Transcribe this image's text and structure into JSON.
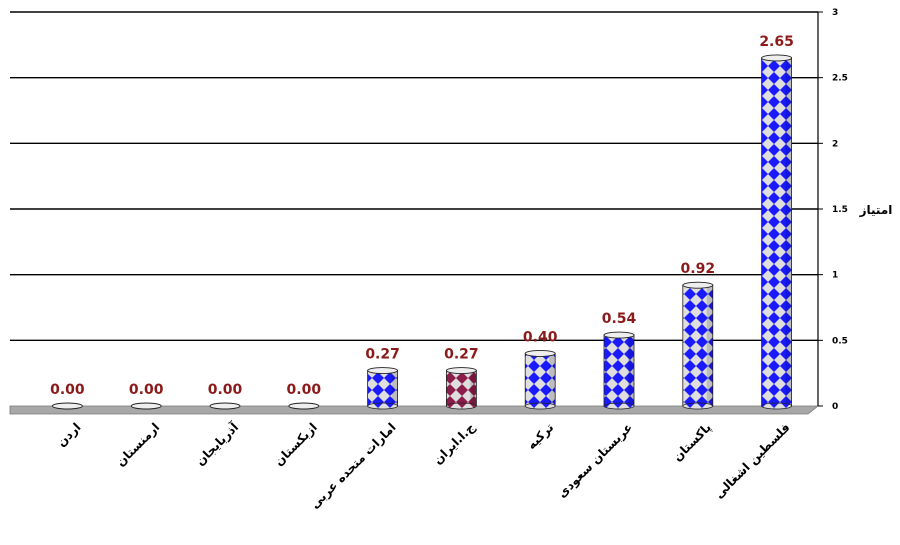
{
  "chart_data": {
    "type": "bar",
    "title": "",
    "xlabel": "",
    "ylabel": "امتیاز",
    "ylim": [
      0,
      3
    ],
    "yticks": [
      "0",
      "0.5",
      "1",
      "1.5",
      "2",
      "2.5",
      "3"
    ],
    "grid": true,
    "legend": "none",
    "categories": [
      "اردن",
      "ارمنستان",
      "آذربایجان",
      "ازبکستان",
      "امارات متحده عربی",
      "ج.ا.ایران",
      "ترکیه",
      "عربستان سعودی",
      "پاکستان",
      "فلسطین اشغالی"
    ],
    "values": [
      0.0,
      0.0,
      0.0,
      0.0,
      0.27,
      0.27,
      0.4,
      0.54,
      0.92,
      2.65
    ],
    "data_labels": [
      "0.00",
      "0.00",
      "0.00",
      "0.00",
      "0.27",
      "0.27",
      "0.40",
      "0.54",
      "0.92",
      "2.65"
    ],
    "colors": {
      "bar_primary": "#1a1aff",
      "bar_highlight": "#8c1c4a",
      "bar_light": "#dedede",
      "data_label": "#8b1a1a",
      "gridline": "#000000",
      "floor": "#a8a8a8"
    },
    "highlight_index": 5
  }
}
